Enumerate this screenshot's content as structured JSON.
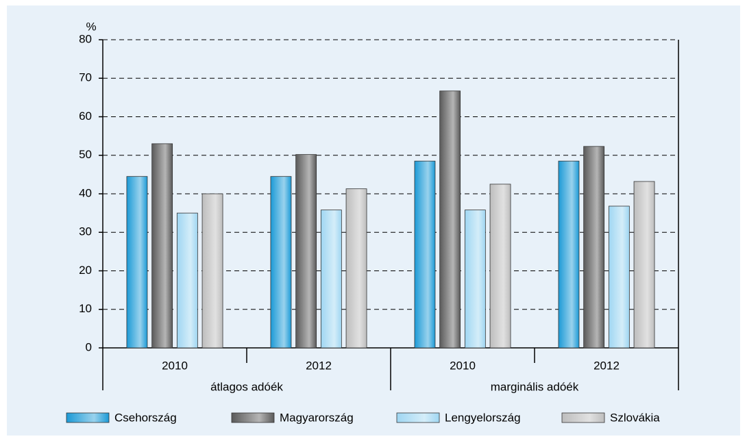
{
  "chart_data": {
    "type": "bar",
    "ylabel": "%",
    "categories": [
      "2010",
      "2012",
      "2010",
      "2012"
    ],
    "groups": [
      "átlagos adóék",
      "marginális adóék"
    ],
    "series": [
      {
        "name": "Csehország",
        "color": "#1c9ad6",
        "values": [
          44.5,
          44.5,
          48.5,
          48.5
        ]
      },
      {
        "name": "Magyarország",
        "color": "#5a5a5a",
        "values": [
          53,
          50.2,
          66.7,
          52.3
        ]
      },
      {
        "name": "Lengyelország",
        "color": "#9fd6f2",
        "values": [
          35,
          35.8,
          35.8,
          36.8
        ]
      },
      {
        "name": "Szlovákia",
        "color": "#bdbdbd",
        "values": [
          40,
          41.3,
          42.5,
          43.2
        ]
      }
    ],
    "ylim": [
      0,
      80
    ],
    "yticks": [
      0,
      10,
      20,
      30,
      40,
      50,
      60,
      70,
      80
    ],
    "grid": true
  }
}
